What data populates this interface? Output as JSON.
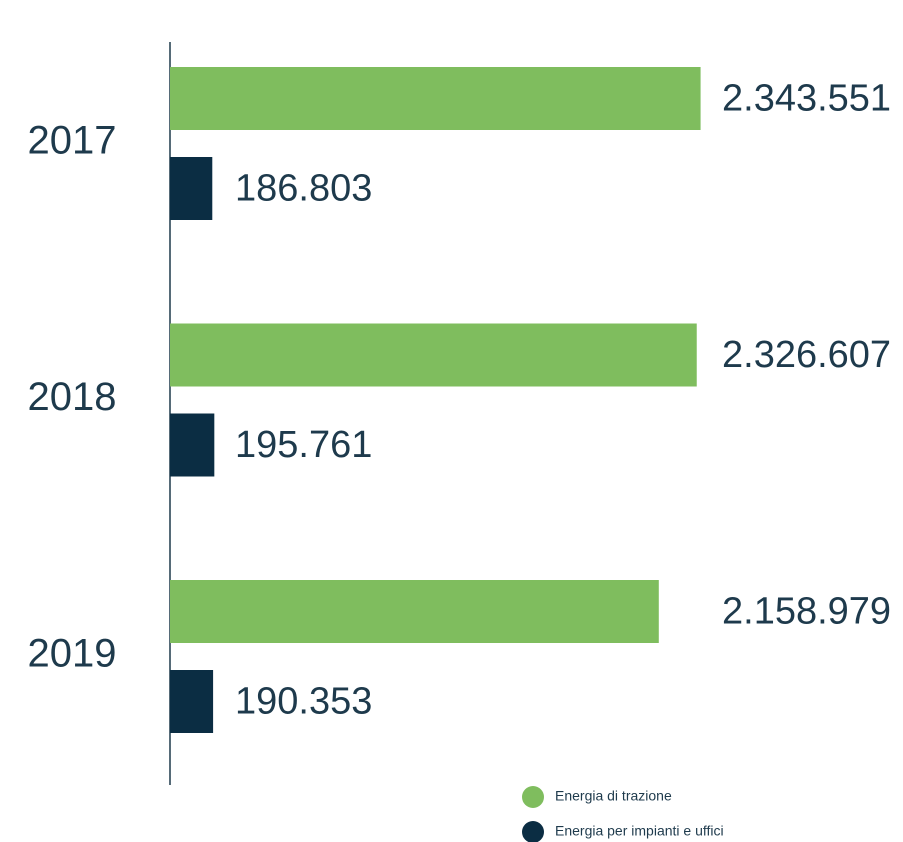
{
  "chart_data": {
    "type": "bar",
    "orientation": "horizontal",
    "categories": [
      "2017",
      "2018",
      "2019"
    ],
    "xlim": [
      0,
      2500000
    ],
    "series": [
      {
        "name": "Energia di trazione",
        "color": "#7fbd5e",
        "values": [
          2343551,
          2326607,
          2158979
        ],
        "value_labels": [
          "2.343.551",
          "2.326.607",
          "2.158.979"
        ]
      },
      {
        "name": "Energia per impianti e uffici",
        "color": "#0b2d43",
        "values": [
          186803,
          195761,
          190353
        ],
        "value_labels": [
          "186.803",
          "195.761",
          "190.353"
        ]
      }
    ]
  }
}
